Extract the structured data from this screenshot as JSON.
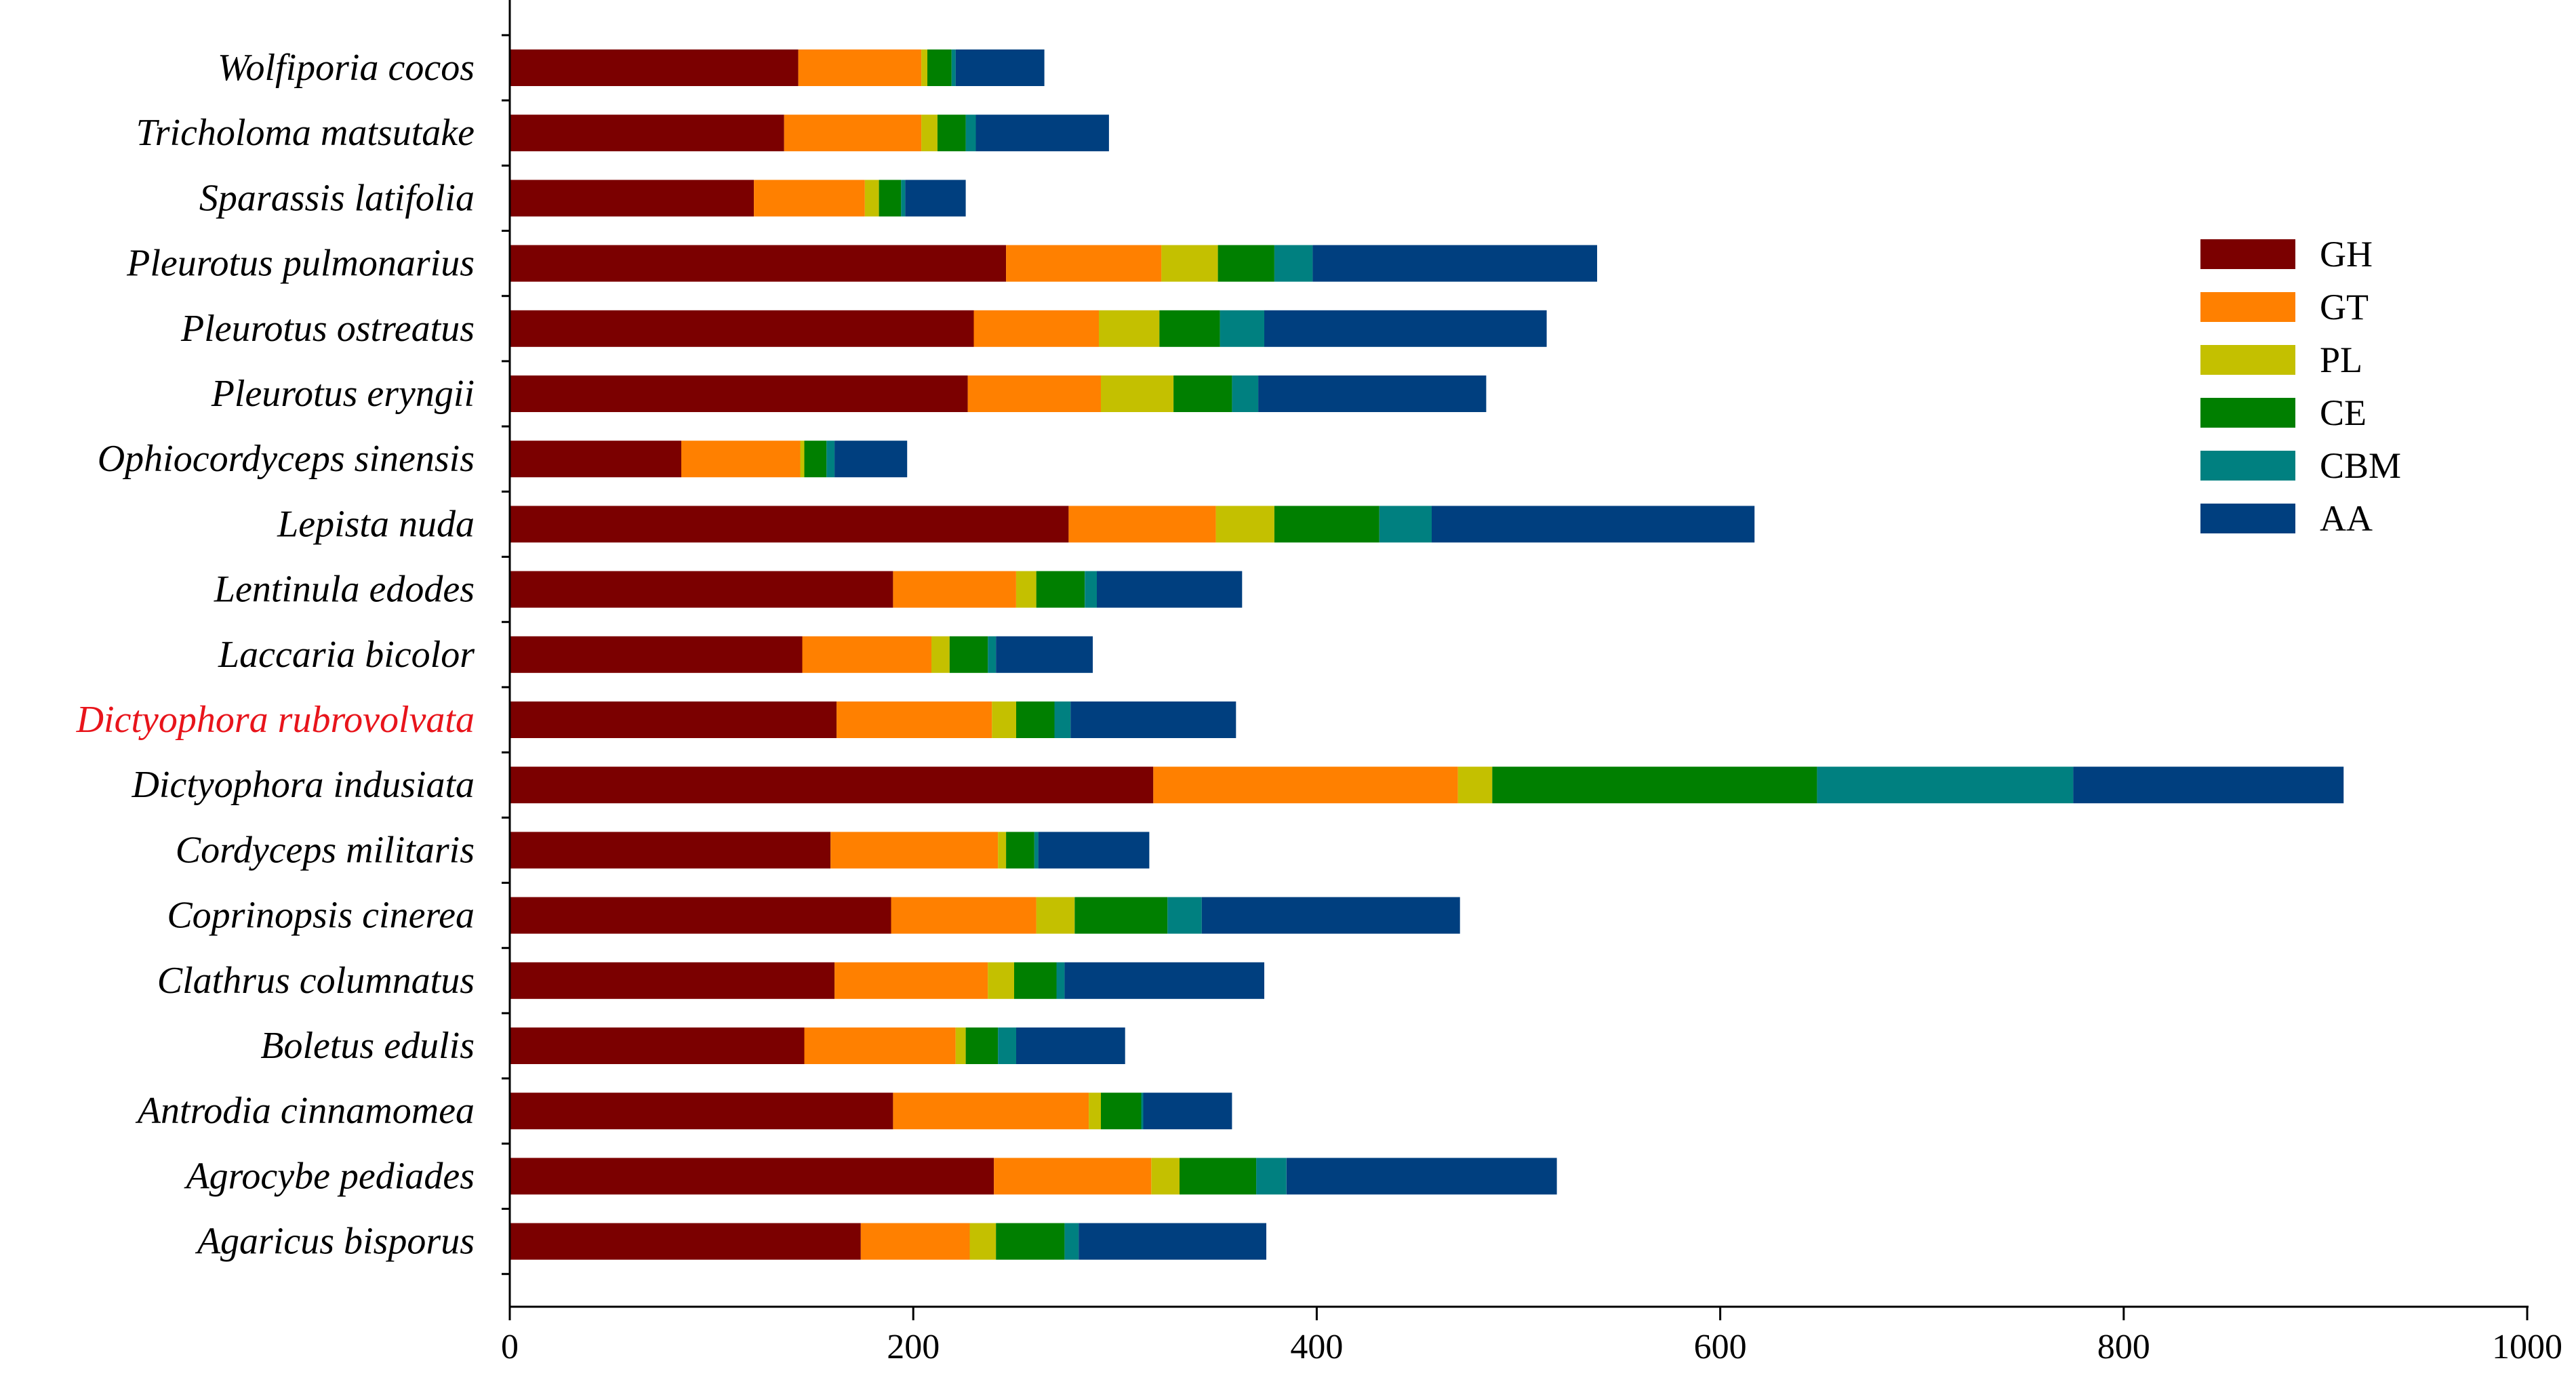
{
  "chart_data": {
    "type": "bar",
    "orientation": "horizontal",
    "stacked": true,
    "categories": [
      "Wolfiporia cocos",
      "Tricholoma matsutake",
      "Sparassis latifolia",
      "Pleurotus pulmonarius",
      "Pleurotus ostreatus",
      "Pleurotus eryngii",
      "Ophiocordyceps sinensis",
      "Lepista nuda",
      "Lentinula edodes",
      "Laccaria bicolor",
      "Dictyophora rubrovolvata",
      "Dictyophora indusiata",
      "Cordyceps militaris",
      "Coprinopsis cinerea",
      "Clathrus columnatus",
      "Boletus edulis",
      "Antrodia cinnamomea",
      "Agrocybe pediades",
      "Agaricus bisporus"
    ],
    "highlighted_category": "Dictyophora rubrovolvata",
    "highlight_color": "#e8141b",
    "series": [
      {
        "name": "GH",
        "color": "#7b0000",
        "values": [
          143,
          136,
          121,
          246,
          230,
          227,
          85,
          277,
          190,
          145,
          162,
          319,
          159,
          189,
          161,
          146,
          190,
          240,
          174
        ]
      },
      {
        "name": "GT",
        "color": "#ff8000",
        "values": [
          61,
          68,
          55,
          77,
          62,
          66,
          59,
          73,
          61,
          64,
          77,
          151,
          83,
          72,
          76,
          75,
          97,
          78,
          54
        ]
      },
      {
        "name": "PL",
        "color": "#c4c000",
        "values": [
          3,
          8,
          7,
          28,
          30,
          36,
          2,
          29,
          10,
          9,
          12,
          17,
          4,
          19,
          13,
          5,
          6,
          14,
          13
        ]
      },
      {
        "name": "CE",
        "color": "#007f00",
        "values": [
          12,
          14,
          11,
          28,
          30,
          29,
          11,
          52,
          24,
          19,
          19,
          161,
          14,
          46,
          21,
          16,
          20,
          38,
          34
        ]
      },
      {
        "name": "CBM",
        "color": "#008080",
        "values": [
          2,
          5,
          2,
          19,
          22,
          13,
          4,
          26,
          6,
          4,
          8,
          127,
          2,
          17,
          4,
          9,
          1,
          15,
          7
        ]
      },
      {
        "name": "AA",
        "color": "#003f7f",
        "values": [
          44,
          66,
          30,
          141,
          140,
          113,
          36,
          160,
          72,
          48,
          82,
          134,
          55,
          128,
          99,
          54,
          44,
          134,
          93
        ]
      }
    ],
    "xlim": [
      0,
      1000
    ],
    "xticks": [
      0,
      200,
      400,
      600,
      800,
      1000
    ],
    "xlabel": "",
    "ylabel": "",
    "title": "",
    "grid": false,
    "legend_position": "right"
  }
}
